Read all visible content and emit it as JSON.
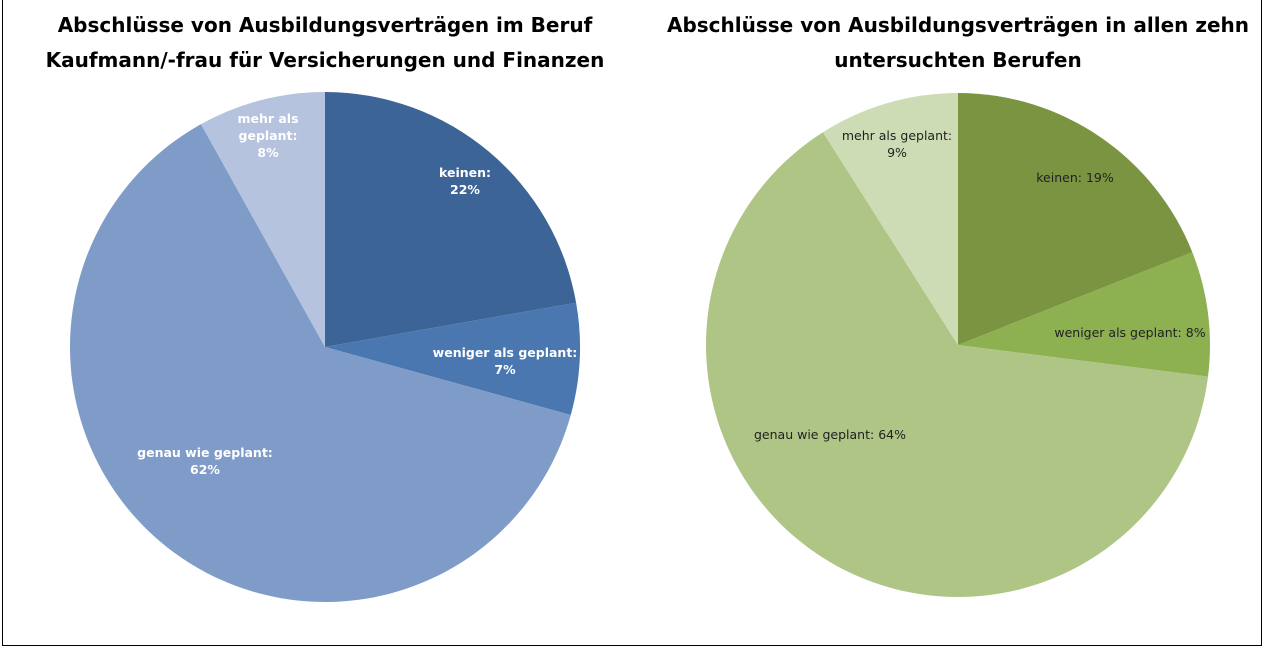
{
  "chart_data": [
    {
      "type": "pie",
      "title": "Abschlüsse von Ausbildungsverträgen im Beruf Kaufmann/-frau für Versicherungen und Finanzen",
      "categories": [
        "keinen:",
        "weniger als geplant:",
        "genau wie geplant:",
        "mehr als geplant:"
      ],
      "values": [
        22,
        7,
        62,
        8
      ],
      "value_labels": [
        "22%",
        "7%",
        "62%",
        "8%"
      ],
      "colors": [
        "#3d6496",
        "#4a77b0",
        "#7f9cc9",
        "#b5c3df"
      ]
    },
    {
      "type": "pie",
      "title": "Abschlüsse von Ausbildungsverträgen in allen zehn untersuchten Berufen",
      "categories": [
        "keinen:",
        "weniger als geplant:",
        "genau wie geplant:",
        "mehr als geplant:"
      ],
      "values": [
        19,
        8,
        64,
        9
      ],
      "value_labels": [
        "19%",
        "8%",
        "64%",
        "9%"
      ],
      "colors": [
        "#7a9442",
        "#8db050",
        "#aec585",
        "#cedcb5"
      ]
    }
  ]
}
